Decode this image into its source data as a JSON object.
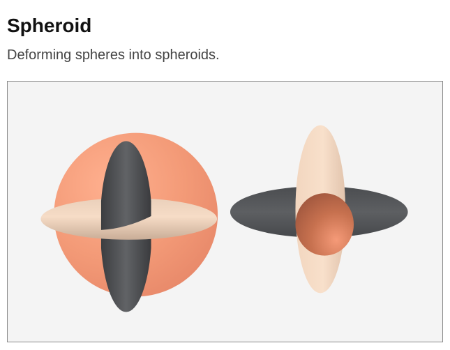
{
  "header": {
    "title": "Spheroid",
    "subtitle": "Deforming spheres into spheroids."
  },
  "scene": {
    "colors": {
      "background": "#f4f4f4",
      "sphere": "#f59b78",
      "dark_ellipsoid": "#55575a",
      "light_ellipsoid": "#f3d7c0",
      "center_spheroid": "#c8714f"
    }
  }
}
